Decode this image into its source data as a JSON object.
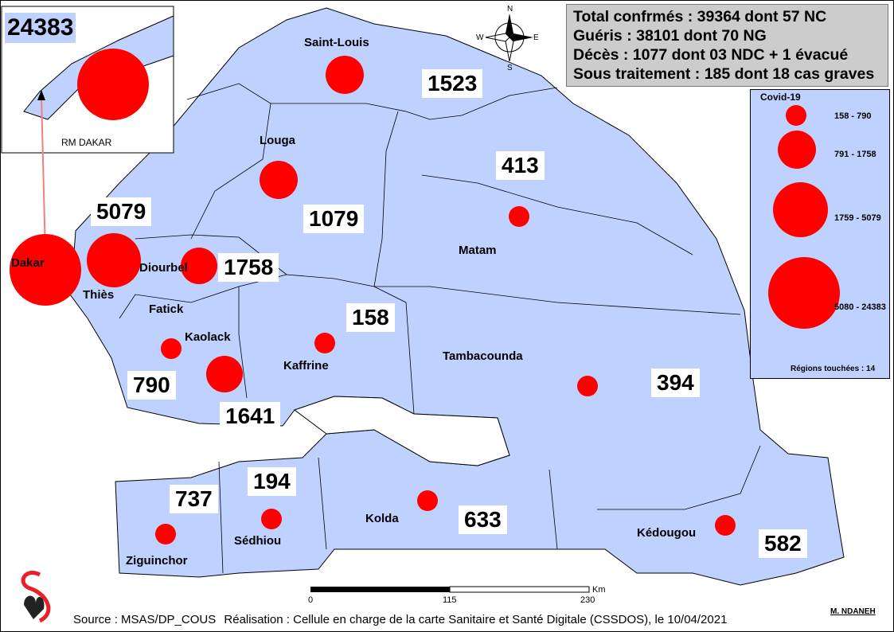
{
  "stats": {
    "lines": [
      "Total confrmés : 39364 dont 57 NC",
      "Guéris : 38101 dont 70 NG",
      "Décès : 1077 dont 03 NDC + 1 évacué",
      "Sous traitement : 185 dont 18 cas graves"
    ]
  },
  "inset": {
    "title": "RM DAKAR",
    "value": "24383"
  },
  "regions": [
    {
      "name": "Dakar",
      "cases": "24383"
    },
    {
      "name": "Thiès",
      "cases": "5079"
    },
    {
      "name": "Diourbel",
      "cases": "1758"
    },
    {
      "name": "Saint-Louis",
      "cases": "1523"
    },
    {
      "name": "Louga",
      "cases": "1079"
    },
    {
      "name": "Matam",
      "cases": "413"
    },
    {
      "name": "Fatick",
      "cases": "790"
    },
    {
      "name": "Kaolack",
      "cases": "1641"
    },
    {
      "name": "Kaffrine",
      "cases": "158"
    },
    {
      "name": "Tambacounda",
      "cases": "394"
    },
    {
      "name": "Ziguinchor",
      "cases": "737"
    },
    {
      "name": "Sédhiou",
      "cases": "194"
    },
    {
      "name": "Kolda",
      "cases": "633"
    },
    {
      "name": "Kédougou",
      "cases": "582"
    }
  ],
  "legend": {
    "title": "Covid-19",
    "classes": [
      "158 - 790",
      "791 - 1758",
      "1759 - 5079",
      "5080 - 24383"
    ],
    "regions_touched": "Régions touchées : 14"
  },
  "compass": {
    "n": "N",
    "s": "S",
    "e": "E",
    "w": "W"
  },
  "scale": {
    "unit": "Km",
    "ticks": [
      "0",
      "115",
      "230"
    ]
  },
  "footer": {
    "source": "Source : MSAS/DP_COUS",
    "credit": "Réalisation : Cellule en charge de la carte Sanitaire et Santé Digitale (CSSDOS), le 10/04/2021",
    "author": "M. NDANEH"
  },
  "colors": {
    "land": "#bfd2ff",
    "bubble": "#ff0000",
    "stats_bg": "#cccccc",
    "arrow": "#f08080"
  }
}
